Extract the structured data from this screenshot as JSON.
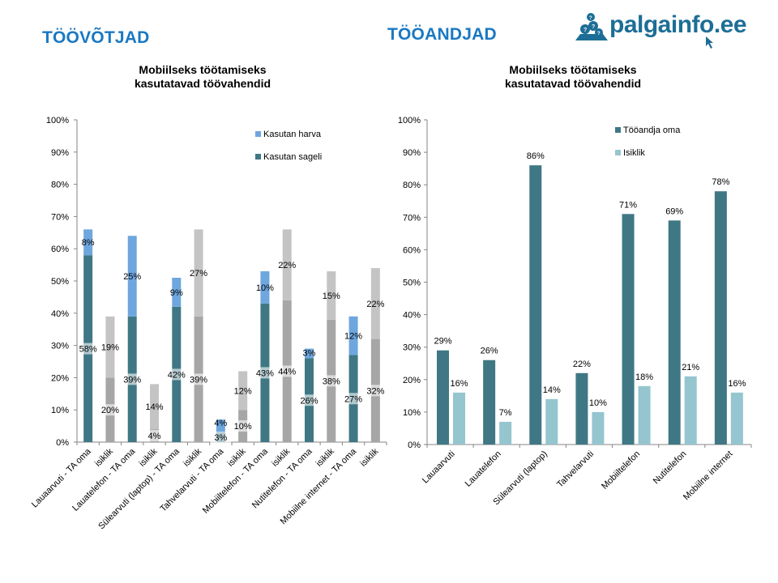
{
  "page": {
    "left_section_title": "TÖÖVÕTJAD",
    "right_section_title": "TÖÖANDJAD",
    "logo_text": "palgainfo.ee"
  },
  "colors": {
    "brand_blue": "#1a78c2",
    "teal": "#3f7884",
    "light_blue": "#6ea6de",
    "gray_dark": "#a6a6a6",
    "gray_light": "#c4c4c4",
    "light_teal": "#95c5cf"
  },
  "chart_data": [
    {
      "type": "bar",
      "stacked": true,
      "title": "Mobiilseks töötamiseks kasutatavad töövahendid",
      "title_lines": [
        "Mobiilseks töötamiseks",
        "kasutatavad töövahendid"
      ],
      "xlabel": "",
      "ylabel": "",
      "ylim": [
        0,
        100
      ],
      "yticks": [
        "0%",
        "10%",
        "20%",
        "30%",
        "40%",
        "50%",
        "60%",
        "70%",
        "80%",
        "90%",
        "100%"
      ],
      "legend_position": "top-right",
      "legend": [
        "Kasutan harva",
        "Kasutan sageli"
      ],
      "categories": [
        "Lauaarvuti - TA oma",
        "isiklik",
        "Lauatelefon - TA oma",
        "isiklik",
        "Sülearvuti (laptop) - TA oma",
        "isiklik",
        "Tahvelarvuti - TA oma",
        "isiklik",
        "Mobiiltelefon - TA oma",
        "isiklik",
        "Nutitelefon - TA oma",
        "isiklik",
        "Mobiilne internet - TA oma",
        "isiklik"
      ],
      "series": [
        {
          "name": "Kasutan sageli",
          "values": [
            58,
            20,
            39,
            4,
            42,
            39,
            3,
            10,
            43,
            44,
            26,
            38,
            27,
            32
          ]
        },
        {
          "name": "Kasutan harva",
          "values": [
            8,
            19,
            25,
            14,
            9,
            27,
            4,
            12,
            10,
            22,
            3,
            15,
            12,
            22
          ]
        }
      ],
      "data_labels": {
        "Kasutan sageli": [
          "58%",
          "20%",
          "39%",
          "4%",
          "42%",
          "39%",
          "3%",
          "10%",
          "43%",
          "44%",
          "26%",
          "38%",
          "27%",
          "32%"
        ],
        "Kasutan harva": [
          "8%",
          "19%",
          "25%",
          "14%",
          "9%",
          "27%",
          "4%",
          "12%",
          "10%",
          "22%",
          "3%",
          "15%",
          "12%",
          "22%"
        ]
      }
    },
    {
      "type": "bar",
      "stacked": false,
      "title": "Mobiilseks töötamiseks kasutatavad töövahendid",
      "title_lines": [
        "Mobiilseks töötamiseks",
        "kasutatavad töövahendid"
      ],
      "xlabel": "",
      "ylabel": "",
      "ylim": [
        0,
        100
      ],
      "yticks": [
        "0%",
        "10%",
        "20%",
        "30%",
        "40%",
        "50%",
        "60%",
        "70%",
        "80%",
        "90%",
        "100%"
      ],
      "legend_position": "top-right",
      "legend": [
        "Tööandja oma",
        "Isiklik"
      ],
      "categories": [
        "Lauaarvuti",
        "Lauatelefon",
        "Sülearvuti (laptop)",
        "Tahvelarvuti",
        "Mobiiltelefon",
        "Nutitelefon",
        "Mobiilne internet"
      ],
      "series": [
        {
          "name": "Tööandja oma",
          "values": [
            29,
            26,
            86,
            22,
            71,
            69,
            78
          ]
        },
        {
          "name": "Isiklik",
          "values": [
            16,
            7,
            14,
            10,
            18,
            21,
            16
          ]
        }
      ],
      "data_labels": {
        "Tööandja oma": [
          "29%",
          "26%",
          "86%",
          "22%",
          "71%",
          "69%",
          "78%"
        ],
        "Isiklik": [
          "16%",
          "7%",
          "14%",
          "10%",
          "18%",
          "21%",
          "16%"
        ]
      }
    }
  ]
}
